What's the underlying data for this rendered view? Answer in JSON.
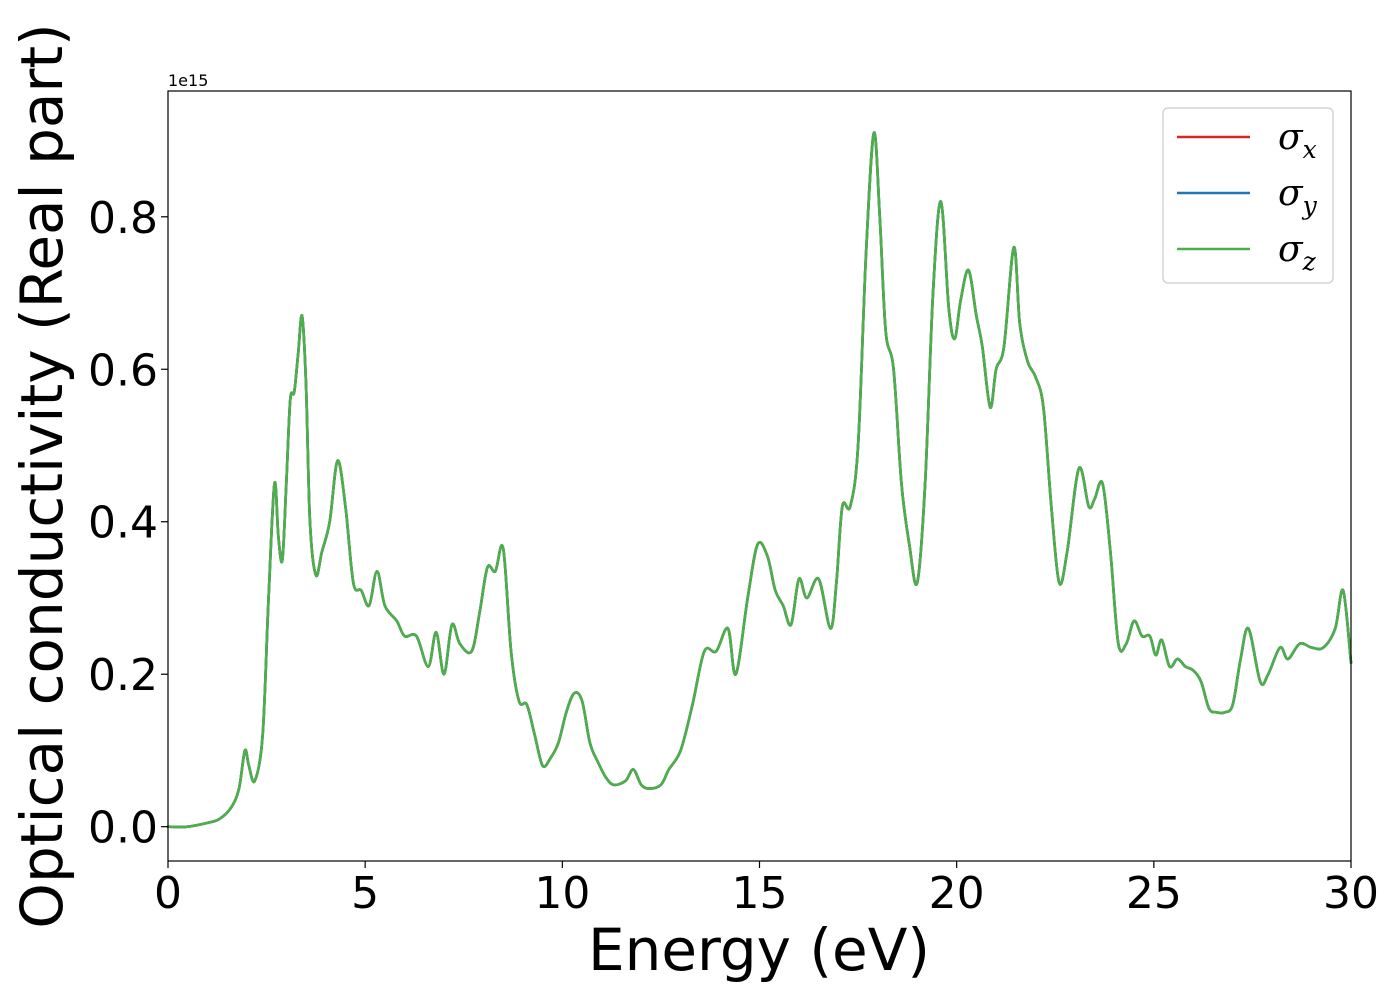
{
  "chart_data": {
    "type": "line",
    "xlabel": "Energy (eV)",
    "ylabel": "Optical conductivity (Real part)",
    "y_offset_label": "1e15",
    "xlim": [
      0,
      30
    ],
    "ylim": [
      -0.045,
      0.965
    ],
    "x_ticks": [
      0,
      5,
      10,
      15,
      20,
      25,
      30
    ],
    "x_tick_labels": [
      "0",
      "5",
      "10",
      "15",
      "20",
      "25",
      "30"
    ],
    "y_ticks": [
      0.0,
      0.2,
      0.4,
      0.6,
      0.8
    ],
    "y_tick_labels": [
      "0.0",
      "0.2",
      "0.4",
      "0.6",
      "0.8"
    ],
    "grid": false,
    "legend_position": "top-right",
    "series": [
      {
        "name": "σx",
        "symbol": "σ",
        "subscript": "x",
        "color": "#d62728",
        "shares_curve_with": "σz"
      },
      {
        "name": "σy",
        "symbol": "σ",
        "subscript": "y",
        "color": "#1f77b4",
        "shares_curve_with": "σz"
      },
      {
        "name": "σz",
        "symbol": "σ",
        "subscript": "z",
        "color": "#4daf4a",
        "x": [
          0,
          0.5,
          1.0,
          1.3,
          1.6,
          1.8,
          1.95,
          2.05,
          2.2,
          2.4,
          2.55,
          2.7,
          2.8,
          2.9,
          3.0,
          3.1,
          3.2,
          3.3,
          3.4,
          3.5,
          3.6,
          3.75,
          3.9,
          4.1,
          4.3,
          4.5,
          4.7,
          4.9,
          5.1,
          5.3,
          5.5,
          5.8,
          6.0,
          6.3,
          6.6,
          6.8,
          7.0,
          7.2,
          7.4,
          7.7,
          7.9,
          8.1,
          8.3,
          8.5,
          8.7,
          8.9,
          9.1,
          9.3,
          9.5,
          9.7,
          9.9,
          10.1,
          10.3,
          10.5,
          10.7,
          10.9,
          11.1,
          11.3,
          11.6,
          11.8,
          12.0,
          12.2,
          12.5,
          12.7,
          13.0,
          13.3,
          13.6,
          13.9,
          14.2,
          14.4,
          14.7,
          14.95,
          15.2,
          15.4,
          15.6,
          15.8,
          16.0,
          16.2,
          16.5,
          16.8,
          16.95,
          17.1,
          17.3,
          17.5,
          17.7,
          17.9,
          18.05,
          18.2,
          18.4,
          18.6,
          18.8,
          19.0,
          19.2,
          19.4,
          19.6,
          19.8,
          19.95,
          20.1,
          20.3,
          20.5,
          20.65,
          20.85,
          21.0,
          21.2,
          21.45,
          21.6,
          21.8,
          22.0,
          22.2,
          22.4,
          22.6,
          22.8,
          23.1,
          23.35,
          23.5,
          23.7,
          23.9,
          24.1,
          24.3,
          24.5,
          24.7,
          24.9,
          25.05,
          25.2,
          25.4,
          25.6,
          25.8,
          26.0,
          26.2,
          26.4,
          26.6,
          26.8,
          27.0,
          27.2,
          27.4,
          27.7,
          27.9,
          28.2,
          28.4,
          28.7,
          29.0,
          29.3,
          29.6,
          29.8,
          30.0
        ],
        "y": [
          0.0,
          0.0,
          0.005,
          0.01,
          0.025,
          0.05,
          0.1,
          0.08,
          0.06,
          0.12,
          0.3,
          0.45,
          0.38,
          0.35,
          0.45,
          0.56,
          0.57,
          0.62,
          0.67,
          0.58,
          0.4,
          0.33,
          0.36,
          0.4,
          0.48,
          0.42,
          0.32,
          0.31,
          0.29,
          0.335,
          0.29,
          0.27,
          0.25,
          0.25,
          0.21,
          0.255,
          0.2,
          0.265,
          0.24,
          0.23,
          0.28,
          0.34,
          0.335,
          0.365,
          0.23,
          0.165,
          0.16,
          0.12,
          0.08,
          0.09,
          0.11,
          0.15,
          0.175,
          0.165,
          0.11,
          0.085,
          0.065,
          0.055,
          0.06,
          0.075,
          0.055,
          0.05,
          0.055,
          0.075,
          0.1,
          0.16,
          0.23,
          0.23,
          0.26,
          0.2,
          0.3,
          0.37,
          0.355,
          0.31,
          0.29,
          0.265,
          0.325,
          0.3,
          0.325,
          0.26,
          0.32,
          0.42,
          0.42,
          0.5,
          0.75,
          0.91,
          0.8,
          0.65,
          0.6,
          0.45,
          0.37,
          0.32,
          0.45,
          0.7,
          0.82,
          0.68,
          0.64,
          0.69,
          0.73,
          0.67,
          0.63,
          0.55,
          0.6,
          0.63,
          0.76,
          0.66,
          0.61,
          0.59,
          0.55,
          0.42,
          0.32,
          0.36,
          0.47,
          0.42,
          0.43,
          0.45,
          0.36,
          0.24,
          0.24,
          0.27,
          0.25,
          0.25,
          0.225,
          0.245,
          0.21,
          0.22,
          0.21,
          0.205,
          0.19,
          0.155,
          0.15,
          0.15,
          0.16,
          0.22,
          0.26,
          0.19,
          0.2,
          0.235,
          0.22,
          0.24,
          0.235,
          0.235,
          0.26,
          0.31,
          0.215
        ]
      }
    ]
  }
}
